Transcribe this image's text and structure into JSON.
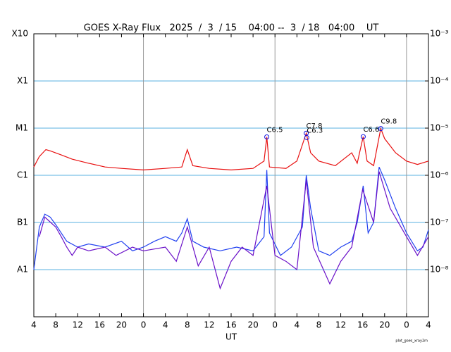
{
  "chart_data": {
    "type": "line",
    "title": "GOES X-Ray Flux   2025  /  3  / 15    04:00 --  3  / 18   04:00    UT",
    "xlabel": "UT",
    "credit": "plot_goes_xray2m",
    "xlim": [
      0,
      72
    ],
    "xticks": [
      {
        "value": 0,
        "label": "4"
      },
      {
        "value": 4,
        "label": "8"
      },
      {
        "value": 8,
        "label": "12"
      },
      {
        "value": 12,
        "label": "16"
      },
      {
        "value": 16,
        "label": "20"
      },
      {
        "value": 20,
        "label": "0"
      },
      {
        "value": 24,
        "label": "4"
      },
      {
        "value": 28,
        "label": "8"
      },
      {
        "value": 32,
        "label": "12"
      },
      {
        "value": 36,
        "label": "16"
      },
      {
        "value": 40,
        "label": "20"
      },
      {
        "value": 44,
        "label": "0"
      },
      {
        "value": 48,
        "label": "4"
      },
      {
        "value": 52,
        "label": "8"
      },
      {
        "value": 56,
        "label": "12"
      },
      {
        "value": 60,
        "label": "16"
      },
      {
        "value": 64,
        "label": "20"
      },
      {
        "value": 68,
        "label": "0"
      },
      {
        "value": 72,
        "label": "4"
      }
    ],
    "ylog": true,
    "ylim": [
      1e-09,
      0.001
    ],
    "yticks": [
      {
        "value": 0.001,
        "label": "X10"
      },
      {
        "value": 0.0001,
        "label": "X1"
      },
      {
        "value": 1e-05,
        "label": "M1"
      },
      {
        "value": 1e-06,
        "label": "C1"
      },
      {
        "value": 1e-07,
        "label": "B1"
      },
      {
        "value": 1e-08,
        "label": "A1"
      }
    ],
    "y2lim": [
      1e-09,
      0.001
    ],
    "y2ticks": [
      {
        "value": 0.001,
        "label": "10⁻³"
      },
      {
        "value": 0.0001,
        "label": "10⁻⁴"
      },
      {
        "value": 1e-05,
        "label": "10⁻⁵"
      },
      {
        "value": 1e-06,
        "label": "10⁻⁶"
      },
      {
        "value": 1e-07,
        "label": "10⁻⁷"
      },
      {
        "value": 1e-08,
        "label": "10⁻⁸"
      }
    ],
    "grid": true,
    "grid_color": "#5ab0e0",
    "series": [
      {
        "color": "#2040f0",
        "x": [
          0,
          1,
          2,
          3,
          4,
          5,
          6,
          8,
          10,
          13,
          16,
          18,
          20,
          22,
          24,
          26,
          27,
          28,
          29,
          31,
          34,
          37,
          40,
          42,
          42.5,
          43,
          45,
          47,
          49,
          49.7,
          50.5,
          52,
          54,
          56,
          58,
          59,
          60.1,
          61,
          62,
          63,
          64,
          66,
          68,
          70,
          71,
          72
        ],
        "values": [
          1e-08,
          8e-08,
          1.5e-07,
          1.3e-07,
          9e-08,
          6e-08,
          4e-08,
          3e-08,
          3.5e-08,
          3e-08,
          4e-08,
          2.5e-08,
          3e-08,
          4e-08,
          5e-08,
          4e-08,
          6e-08,
          1.2e-07,
          4e-08,
          3e-08,
          2.5e-08,
          3e-08,
          2.5e-08,
          5e-08,
          1.3e-06,
          6e-08,
          2e-08,
          3e-08,
          8e-08,
          1e-06,
          2e-07,
          2.5e-08,
          2e-08,
          3e-08,
          4e-08,
          1e-07,
          6e-07,
          6e-08,
          1e-07,
          1.5e-06,
          8e-07,
          2e-07,
          6e-08,
          2.5e-08,
          3e-08,
          7e-08
        ]
      },
      {
        "color": "#6a10c8",
        "x": [
          1,
          2,
          4,
          5,
          6,
          7,
          8,
          10,
          13,
          15,
          18,
          20,
          24,
          26,
          28,
          30,
          32,
          34,
          36,
          38,
          40,
          42.5,
          44,
          46,
          48,
          49.7,
          51,
          54,
          56,
          58,
          60,
          62,
          63,
          65,
          68,
          70,
          72
        ],
        "values": [
          5e-08,
          1.3e-07,
          8e-08,
          5e-08,
          3e-08,
          2e-08,
          3e-08,
          2.5e-08,
          3e-08,
          2e-08,
          3e-08,
          2.5e-08,
          3e-08,
          1.5e-08,
          8e-08,
          1.2e-08,
          3e-08,
          4e-09,
          1.5e-08,
          3e-08,
          2e-08,
          6e-07,
          2e-08,
          1.5e-08,
          1e-08,
          8e-07,
          3e-08,
          5e-09,
          1.5e-08,
          3e-08,
          5e-07,
          1e-07,
          1.2e-06,
          2e-07,
          5e-08,
          2e-08,
          5e-08
        ]
      },
      {
        "color": "#e81010",
        "x": [
          0,
          1,
          2.2,
          3,
          5,
          7,
          10,
          13,
          16,
          20,
          24,
          27,
          28,
          29,
          32,
          36,
          40,
          42,
          42.5,
          43,
          46,
          48,
          49.7,
          50.5,
          52,
          55,
          58,
          59,
          60.1,
          60.8,
          62,
          63.3,
          64,
          66,
          68,
          70,
          72
        ],
        "values": [
          1.5e-06,
          2.5e-06,
          3.5e-06,
          3.3e-06,
          2.7e-06,
          2.2e-06,
          1.8e-06,
          1.5e-06,
          1.4e-06,
          1.3e-06,
          1.4e-06,
          1.5e-06,
          3.5e-06,
          1.6e-06,
          1.4e-06,
          1.3e-06,
          1.4e-06,
          2e-06,
          6.5e-06,
          1.5e-06,
          1.4e-06,
          2e-06,
          7.8e-06,
          3e-06,
          2e-06,
          1.6e-06,
          3e-06,
          1.8e-06,
          6.6e-06,
          2e-06,
          1.6e-06,
          9.8e-06,
          6e-06,
          3e-06,
          2e-06,
          1.7e-06,
          2e-06
        ]
      }
    ],
    "annotations": [
      {
        "text": "C6.5",
        "x": 42.5,
        "y": 6.5e-06
      },
      {
        "text": "C7.8",
        "x": 49.7,
        "y": 7.8e-06
      },
      {
        "text": "C6.3",
        "x": 49.8,
        "y": 6.3e-06
      },
      {
        "text": "C6.6",
        "x": 60.1,
        "y": 6.6e-06
      },
      {
        "text": "C9.8",
        "x": 63.3,
        "y": 9.8e-06
      }
    ]
  }
}
